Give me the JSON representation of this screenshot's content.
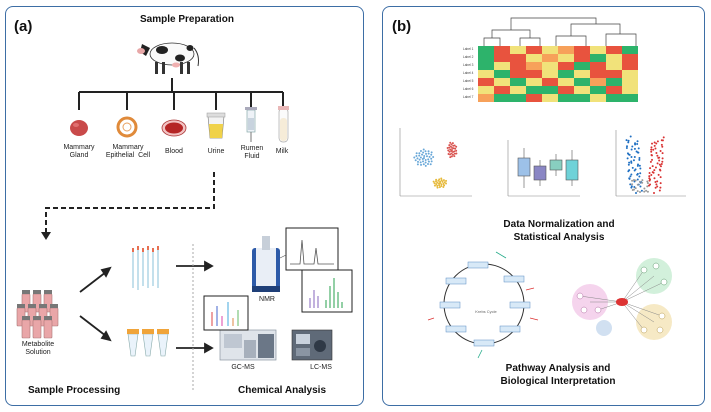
{
  "panel_a": {
    "letter": "(a)",
    "title": "Sample Preparation",
    "samples": [
      {
        "label": "Mammary\nGland"
      },
      {
        "label": "Mammary\nEpithelial  Cell"
      },
      {
        "label": "Blood"
      },
      {
        "label": "Urine"
      },
      {
        "label": "Rumen\nFluid"
      },
      {
        "label": "Milk"
      }
    ],
    "metabolite_label": "Metabolite\nSolution",
    "sample_processing": "Sample Processing",
    "chemical_analysis": "Chemical Analysis",
    "nmr": "NMR",
    "gcms": "GC-MS",
    "lcms": "LC-MS"
  },
  "panel_b": {
    "letter": "(b)",
    "heatmap_rows": [
      "Label 1",
      "Label 2",
      "Label 3",
      "Label 4",
      "Label 5",
      "Label 6",
      "Label 7"
    ],
    "stats_title": "Data Normalization and\nStatistical Analysis",
    "krebs_label": "Krebs Cycle",
    "pathway_title": "Pathway Analysis and\nBiological Interpretation"
  },
  "colors": {
    "border": "#3d6ea5",
    "heat_red": "#e8533e",
    "heat_yellow": "#f1e27a",
    "heat_green": "#2db36b",
    "volcano_blue": "#1f6fc2",
    "volcano_red": "#d93232"
  }
}
